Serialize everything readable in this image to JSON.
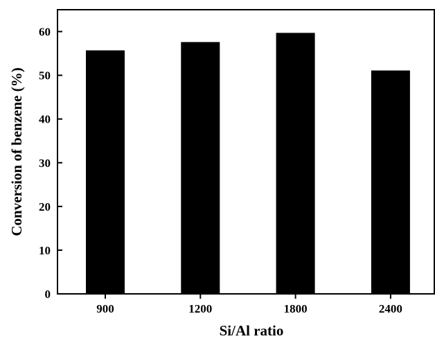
{
  "chart_data": {
    "type": "bar",
    "title": "",
    "xlabel": "Si/Al ratio",
    "ylabel": "Conversion of benzene (%)",
    "categories": [
      "900",
      "1200",
      "1800",
      "2400"
    ],
    "values": [
      55.7,
      57.6,
      59.7,
      51.1
    ],
    "ylim": [
      0,
      65
    ],
    "yticks": [
      0,
      10,
      20,
      30,
      40,
      50,
      60
    ],
    "ytick_labels": [
      "0",
      "10",
      "20",
      "30",
      "40",
      "50",
      "60"
    ],
    "grid": false,
    "legend": "none",
    "bar_color": "#000000"
  }
}
